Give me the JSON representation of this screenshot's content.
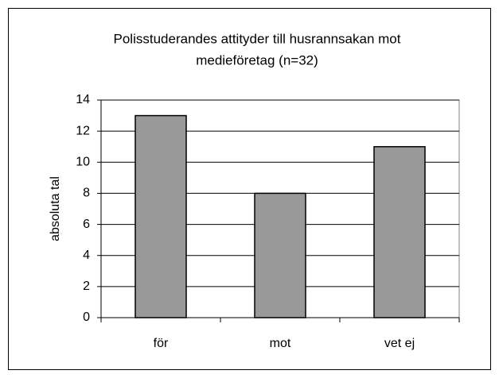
{
  "chart_data": {
    "type": "bar",
    "title": [
      "Polisstuderandes attityder till husrannsakan mot",
      "medieföretag (n=32)"
    ],
    "y_label": "absoluta tal",
    "categories": [
      "för",
      "mot",
      "vet ej"
    ],
    "values": [
      13,
      8,
      11
    ],
    "color": "#999999",
    "ylim": [
      0,
      14
    ],
    "yticks": [
      0,
      2,
      4,
      6,
      8,
      10,
      12,
      14
    ],
    "grid": true
  }
}
